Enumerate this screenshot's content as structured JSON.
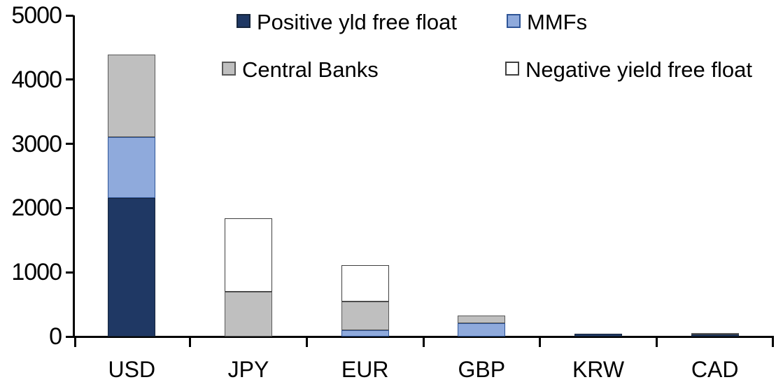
{
  "chart_data": {
    "type": "bar",
    "subtype": "stacked",
    "title": "",
    "xlabel": "",
    "ylabel": "",
    "categories": [
      "USD",
      "JPY",
      "EUR",
      "GBP",
      "KRW",
      "CAD"
    ],
    "series": [
      {
        "name": "Positive yld free float",
        "color": "#1F3864",
        "border": "#17263C",
        "values": [
          2160,
          0,
          0,
          0,
          40,
          35
        ]
      },
      {
        "name": "MMFs",
        "color": "#8FAADC",
        "border": "#2F5597",
        "values": [
          940,
          0,
          100,
          210,
          0,
          0
        ]
      },
      {
        "name": "Central Banks",
        "color": "#BFBFBF",
        "border": "#595959",
        "values": [
          1290,
          700,
          440,
          120,
          0,
          20
        ]
      },
      {
        "name": "Negative yield free float",
        "color": "#FFFFFF",
        "border": "#404040",
        "values": [
          0,
          1140,
          570,
          0,
          0,
          0
        ]
      }
    ],
    "totals": [
      4390,
      1840,
      1110,
      330,
      40,
      55
    ],
    "ylim": [
      0,
      5000
    ],
    "yticks": [
      0,
      1000,
      2000,
      3000,
      4000,
      5000
    ],
    "grid": "off",
    "legend_position": "top",
    "axis_color": "#000000",
    "background_color": "#FFFFFF"
  }
}
